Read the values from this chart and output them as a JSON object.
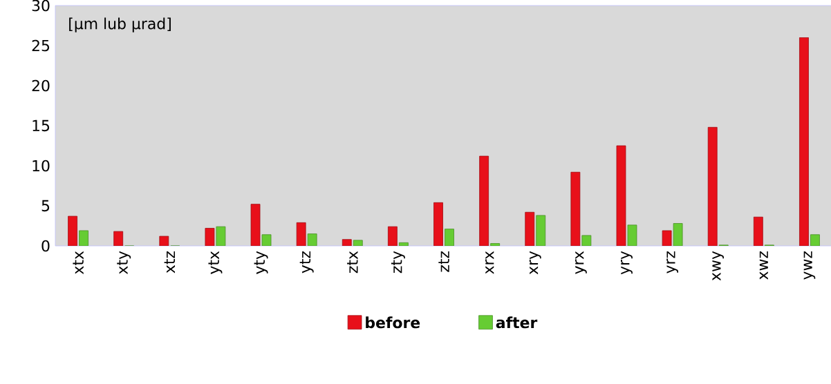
{
  "chart_data": {
    "type": "bar",
    "categories": [
      "xtx",
      "xty",
      "xtz",
      "ytx",
      "yty",
      "ytz",
      "ztx",
      "zty",
      "ztz",
      "xrx",
      "xry",
      "yrx",
      "yry",
      "yrz",
      "xwy",
      "xwz",
      "ywz"
    ],
    "series": [
      {
        "name": "before",
        "color": "#e8101a",
        "values": [
          3.7,
          1.8,
          1.2,
          2.2,
          5.2,
          2.9,
          0.8,
          2.4,
          5.4,
          11.2,
          4.2,
          9.2,
          12.5,
          1.9,
          14.8,
          3.6,
          26.0
        ]
      },
      {
        "name": "after",
        "color": "#66cc33",
        "values": [
          1.9,
          0,
          0,
          2.4,
          1.4,
          1.5,
          0.7,
          0.4,
          2.1,
          0.3,
          3.8,
          1.3,
          2.6,
          2.8,
          0.1,
          0.1,
          1.4
        ]
      }
    ],
    "ylim": [
      0,
      30
    ],
    "yticks": [
      0,
      5,
      10,
      15,
      20,
      25,
      30
    ],
    "annotations": [
      "[µm lub µrad]"
    ],
    "grid": false,
    "legend": "bottom"
  }
}
